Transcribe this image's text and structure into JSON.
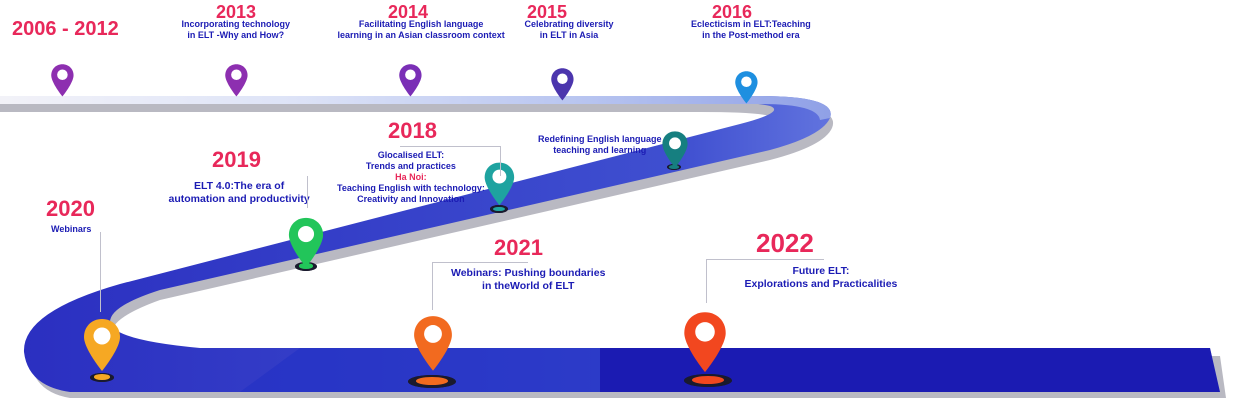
{
  "colors": {
    "year": "#e8285a",
    "event_text": "#1c1cb4",
    "road_dark": "#1b1bb2",
    "road_light": "#c9d1f2",
    "road_shadow": "#b9b9c2"
  },
  "milestones": [
    {
      "year": "2006 - 2012",
      "lines": [],
      "pin_color": "#8d2fb0",
      "icon": "map-pin-icon"
    },
    {
      "year": "2013",
      "lines": [
        "Incorporating technology",
        "in ELT -Why and How?"
      ],
      "pin_color": "#8d2fb0",
      "icon": "map-pin-icon"
    },
    {
      "year": "2014",
      "lines": [
        "Facilitating English language",
        "learning in an Asian classroom context"
      ],
      "pin_color": "#7a2fb6",
      "icon": "map-pin-icon"
    },
    {
      "year": "2015",
      "lines": [
        "Celebrating diversity",
        "in ELT in Asia"
      ],
      "pin_color": "#4b35ad",
      "icon": "map-pin-icon"
    },
    {
      "year": "2016",
      "lines": [
        "Eclecticism in ELT:Teaching",
        "in the Post-method era"
      ],
      "pin_color": "#1e8fe0",
      "icon": "map-pin-icon"
    },
    {
      "year": "",
      "lines": [
        "Redefining English language",
        "teaching and learning"
      ],
      "pin_color": "#167f80",
      "icon": "map-pin-icon"
    },
    {
      "year": "2018",
      "lines": [
        "Glocalised ELT:",
        "Trends and practices"
      ],
      "sub_label": "Ha Noi:",
      "sub_lines": [
        "Teaching English with technology:",
        "Creativity and Innovation"
      ],
      "pin_color": "#1ea3a0",
      "icon": "map-pin-icon"
    },
    {
      "year": "2019",
      "lines": [
        "ELT 4.0:The era of",
        "automation and productivity"
      ],
      "pin_color": "#22c55a",
      "icon": "map-pin-icon"
    },
    {
      "year": "2020",
      "lines": [
        "Webinars"
      ],
      "pin_color": "#f6a823",
      "icon": "map-pin-icon"
    },
    {
      "year": "2021",
      "lines": [
        "Webinars: Pushing boundaries",
        "in theWorld of ELT"
      ],
      "pin_color": "#f26a1f",
      "icon": "map-pin-icon"
    },
    {
      "year": "2022",
      "lines": [
        "Future ELT:",
        "Explorations and Practicalities"
      ],
      "pin_color": "#f2471f",
      "icon": "map-pin-icon"
    }
  ]
}
